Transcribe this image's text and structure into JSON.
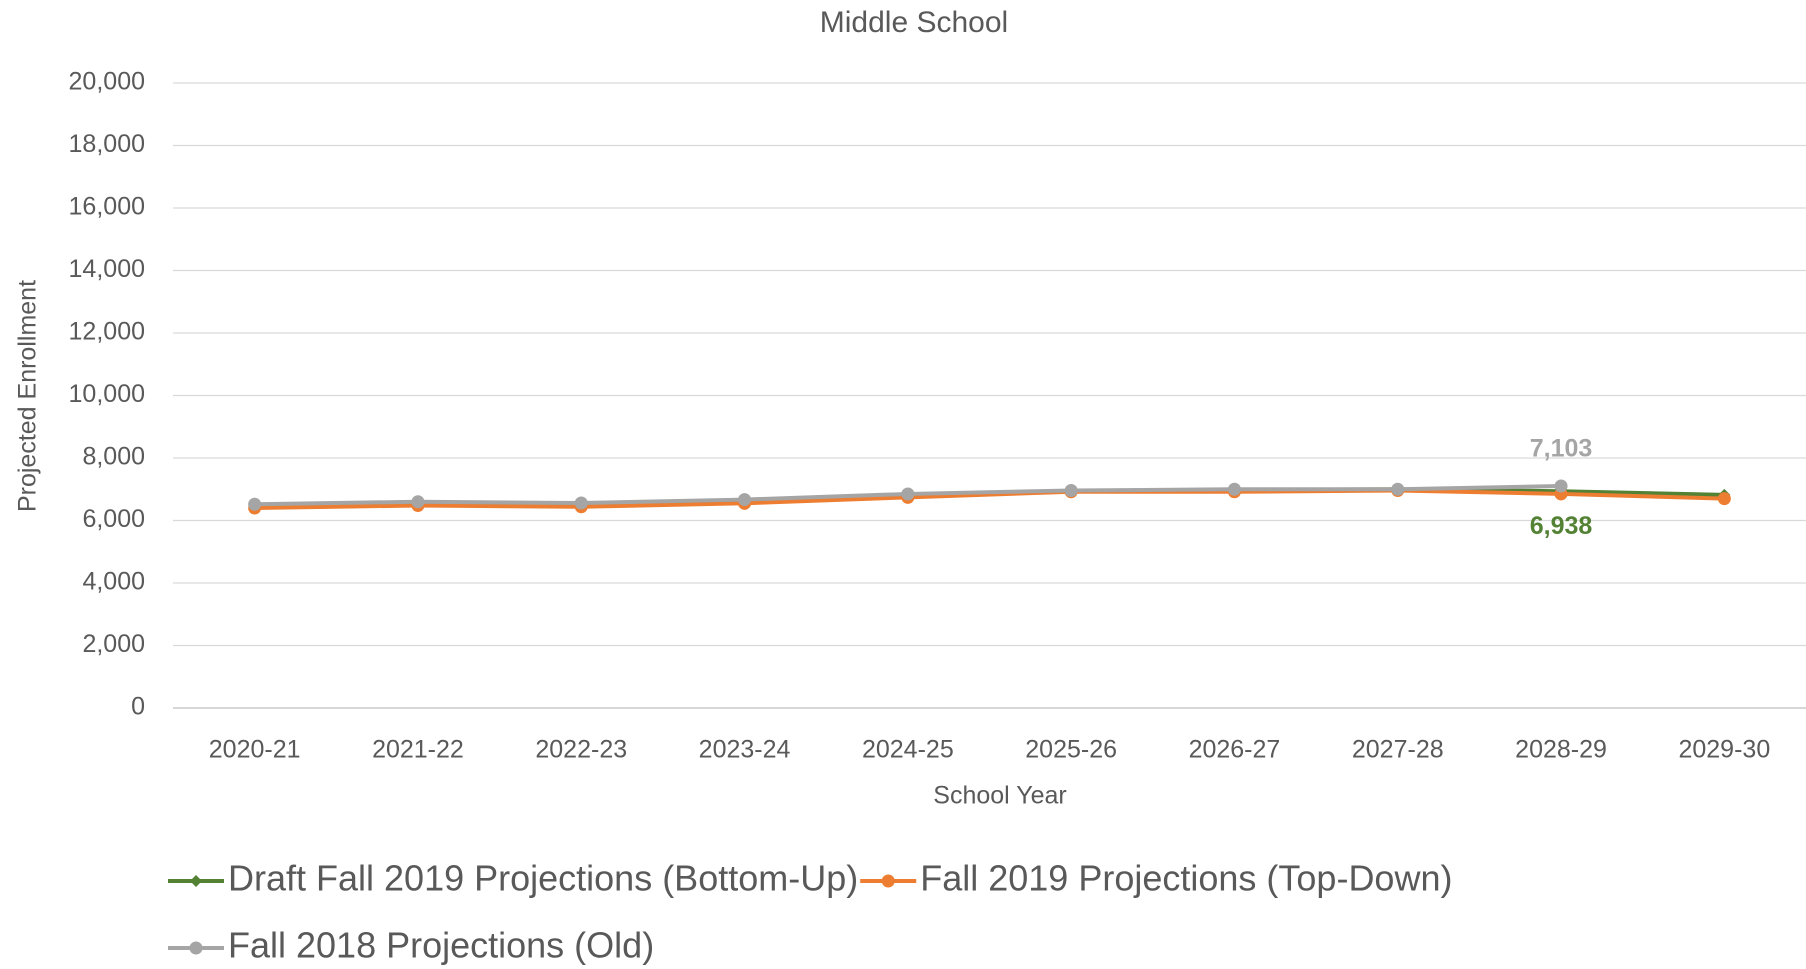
{
  "chart_data": {
    "type": "line",
    "title": "Middle School",
    "x_label": "School Year",
    "y_label": "Projected Enrollment",
    "categories": [
      "2020-21",
      "2021-22",
      "2022-23",
      "2023-24",
      "2024-25",
      "2025-26",
      "2026-27",
      "2027-28",
      "2028-29",
      "2029-30"
    ],
    "series": [
      {
        "name": "Draft Fall 2019 Projections (Bottom-Up)",
        "color": "#548235",
        "marker": "diamond",
        "values": [
          6450,
          6550,
          6520,
          6620,
          6800,
          6950,
          6980,
          7000,
          6938,
          6820
        ],
        "value_labels": [
          null,
          null,
          null,
          null,
          null,
          null,
          null,
          null,
          "6,938",
          null
        ]
      },
      {
        "name": "Fall 2019 Projections (Top-Down)",
        "color": "#ed7d31",
        "marker": "circle",
        "values": [
          6400,
          6480,
          6440,
          6550,
          6740,
          6920,
          6920,
          6960,
          6850,
          6700
        ]
      },
      {
        "name": "Fall 2018 Projections (Old)",
        "color": "#a5a5a5",
        "marker": "circle",
        "values": [
          6520,
          6600,
          6560,
          6670,
          6850,
          6960,
          7000,
          7000,
          7103,
          null
        ],
        "value_labels": [
          null,
          null,
          null,
          null,
          null,
          null,
          null,
          null,
          "7,103",
          null
        ]
      }
    ],
    "ylim": [
      0,
      20000
    ],
    "yticks": [
      0,
      {
        "value": 2000,
        "label": "2,000"
      },
      {
        "value": 4000,
        "label": "4,000"
      },
      {
        "value": 6000,
        "label": "6,000"
      },
      {
        "value": 8000,
        "label": "8,000"
      },
      {
        "value": 10000,
        "label": "10,000"
      },
      {
        "value": 12000,
        "label": "12,000"
      },
      {
        "value": 14000,
        "label": "14,000"
      },
      {
        "value": 16000,
        "label": "16,000"
      },
      {
        "value": 18000,
        "label": "18,000"
      },
      {
        "value": 20000,
        "label": "20,000"
      }
    ],
    "grid": true,
    "legend": "bottom"
  }
}
